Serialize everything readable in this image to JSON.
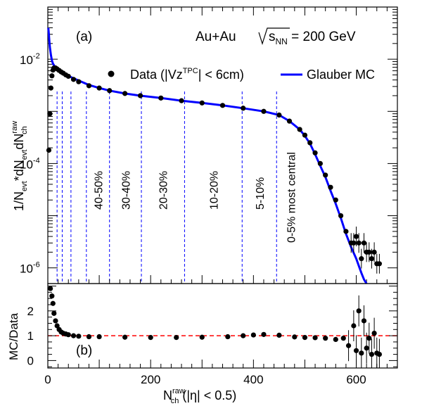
{
  "chart_data": [
    {
      "panel": "top",
      "type": "scatter",
      "panel_label": "(a)",
      "system_label": "Au+Au",
      "energy_label": "s_NN = 200 GeV",
      "ylabel": "1/N_evt*dN_evt/dN_ch^raw",
      "y_scale": "log",
      "xlim": [
        0,
        680
      ],
      "ylim": [
        5e-07,
        0.1
      ],
      "y_tick_labels": [
        {
          "v": 0.01,
          "base": "10",
          "exp": "-2"
        },
        {
          "v": 0.0001,
          "base": "10",
          "exp": "-4"
        },
        {
          "v": 1e-06,
          "base": "10",
          "exp": "-6"
        }
      ],
      "legend_position": "top-right",
      "legend": [
        {
          "name": "Data (|Vz^TPC| < 6cm)",
          "marker": "circle",
          "color": "#000000"
        },
        {
          "name": "Glauber MC",
          "marker": "line",
          "color": "#0000ff"
        }
      ],
      "centrality_cuts": [
        {
          "x": 18,
          "label": ""
        },
        {
          "x": 28,
          "label": ""
        },
        {
          "x": 45,
          "label": ""
        },
        {
          "x": 75,
          "label": "40-50%"
        },
        {
          "x": 120,
          "label": "30-40%"
        },
        {
          "x": 182,
          "label": "20-30%"
        },
        {
          "x": 266,
          "label": "10-20%"
        },
        {
          "x": 378,
          "label": "5-10%"
        },
        {
          "x": 445,
          "label": "0-5% most central"
        }
      ],
      "cut_color": "#0000ff",
      "series": [
        {
          "name": "Data (|Vz^TPC| < 6cm)",
          "x": [
            2,
            4,
            6,
            8,
            10,
            12,
            15,
            18,
            22,
            26,
            30,
            35,
            40,
            50,
            60,
            80,
            100,
            120,
            150,
            180,
            220,
            260,
            300,
            340,
            380,
            420,
            450,
            470,
            490,
            500,
            510,
            520,
            530,
            540,
            550,
            560,
            570,
            580,
            590,
            595,
            600,
            605,
            610,
            615,
            620,
            625,
            630,
            635,
            640,
            645
          ],
          "y": [
            0.00018,
            0.0009,
            0.0028,
            0.0048,
            0.0062,
            0.0068,
            0.0068,
            0.0065,
            0.0061,
            0.0057,
            0.0054,
            0.005,
            0.0047,
            0.0041,
            0.0037,
            0.0031,
            0.0028,
            0.0025,
            0.0022,
            0.002,
            0.0018,
            0.0016,
            0.00145,
            0.0013,
            0.00115,
            0.001,
            0.00085,
            0.00065,
            0.00045,
            0.00035,
            0.00025,
            0.00016,
            0.0001,
            6e-05,
            3.5e-05,
            2e-05,
            1e-05,
            5e-06,
            3e-06,
            3e-06,
            4e-06,
            3e-06,
            1.5e-06,
            3e-06,
            2e-06,
            2e-06,
            1.5e-06,
            2e-06,
            1.2e-06,
            1.2e-06
          ]
        },
        {
          "name": "Glauber MC",
          "x": [
            1,
            2,
            3,
            4,
            6,
            8,
            10,
            13,
            16,
            20,
            25,
            30,
            40,
            50,
            60,
            80,
            100,
            120,
            150,
            180,
            220,
            260,
            300,
            340,
            380,
            420,
            450,
            470,
            490,
            500,
            510,
            520,
            530,
            540,
            550,
            560,
            570,
            580,
            590,
            600,
            610,
            615,
            620
          ],
          "y": [
            0.04,
            0.03,
            0.022,
            0.017,
            0.012,
            0.0095,
            0.0082,
            0.0074,
            0.0068,
            0.0063,
            0.0058,
            0.0054,
            0.0048,
            0.0043,
            0.0039,
            0.0032,
            0.0028,
            0.0025,
            0.0022,
            0.002,
            0.0018,
            0.0016,
            0.00145,
            0.0013,
            0.00115,
            0.001,
            0.00085,
            0.00065,
            0.00045,
            0.00034,
            0.00024,
            0.00015,
            9e-05,
            5.5e-05,
            3e-05,
            1.7e-05,
            9e-06,
            4.5e-06,
            2.5e-06,
            1.5e-06,
            8e-07,
            6e-07,
            5e-07
          ]
        }
      ]
    },
    {
      "panel": "bottom",
      "type": "scatter",
      "panel_label": "(b)",
      "ylabel": "MC/Data",
      "xlabel": "N_ch^raw (|η| < 0.5)",
      "xlim": [
        0,
        680
      ],
      "ylim": [
        -0.3,
        3.1
      ],
      "x_tick_labels": [
        0,
        200,
        400,
        600
      ],
      "y_tick_labels": [
        0,
        1,
        2
      ],
      "reference_line": {
        "y": 1,
        "color": "#ff0000"
      },
      "series": [
        {
          "name": "MC/Data",
          "x": [
            5,
            8,
            10,
            12,
            15,
            18,
            22,
            26,
            30,
            35,
            40,
            50,
            60,
            80,
            100,
            150,
            200,
            250,
            300,
            350,
            380,
            400,
            420,
            450,
            480,
            500,
            520,
            540,
            560,
            575,
            585,
            595,
            600,
            605,
            610,
            615,
            620,
            625,
            630,
            635,
            640,
            645
          ],
          "y": [
            2.9,
            2.6,
            2.3,
            1.9,
            1.6,
            1.4,
            1.25,
            1.15,
            1.1,
            1.07,
            1.04,
            1.0,
            0.98,
            0.96,
            0.96,
            0.94,
            0.93,
            0.93,
            0.94,
            0.96,
            1.0,
            1.03,
            1.05,
            1.02,
            0.95,
            0.93,
            0.92,
            0.9,
            0.85,
            0.9,
            0.6,
            1.4,
            0.4,
            2.0,
            0.3,
            1.6,
            0.5,
            0.9,
            0.25,
            1.1,
            0.3,
            0.25
          ]
        }
      ]
    }
  ]
}
